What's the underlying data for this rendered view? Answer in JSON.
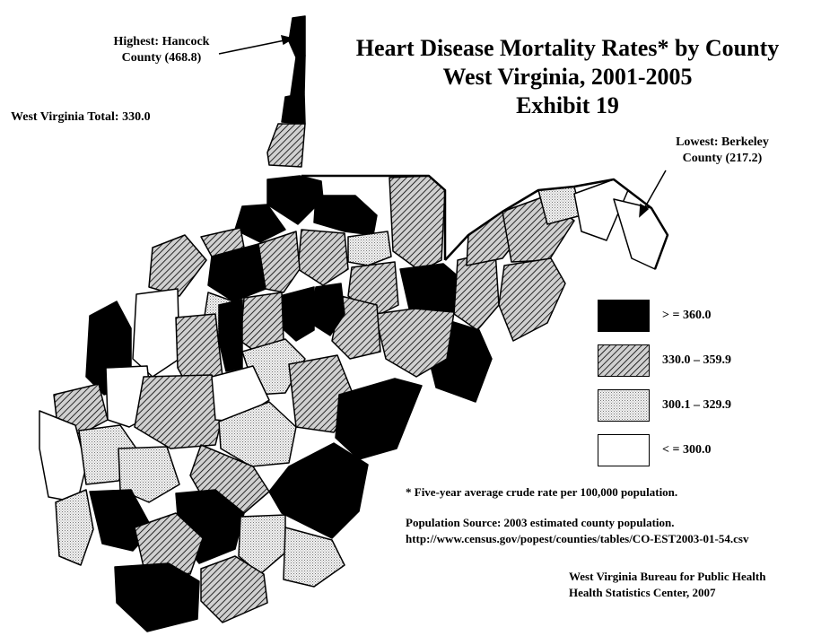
{
  "title": {
    "line1": "Heart Disease Mortality Rates* by County",
    "line2": "West Virginia, 2001-2005",
    "line3": "Exhibit 19"
  },
  "callouts": {
    "highest_line1": "Highest:  Hancock",
    "highest_line2": "County (468.8)",
    "lowest_line1": "Lowest:  Berkeley",
    "lowest_line2": "County (217.2)",
    "state_total": "West Virginia Total:  330.0"
  },
  "legend": [
    {
      "label": "> = 360.0",
      "pattern": "solid-black"
    },
    {
      "label": "330.0 – 359.9",
      "pattern": "hatch"
    },
    {
      "label": "300.1 – 329.9",
      "pattern": "stipple"
    },
    {
      "label": "< = 300.0",
      "pattern": "white"
    }
  ],
  "footnote": "* Five-year average crude rate per 100,000 population.",
  "source_line1": "Population Source:  2003 estimated county population.",
  "source_line2": "http://www.census.gov/popest/counties/tables/CO-EST2003-01-54.csv",
  "credit_line1": "West Virginia Bureau for Public Health",
  "credit_line2": "Health Statistics Center, 2007"
}
